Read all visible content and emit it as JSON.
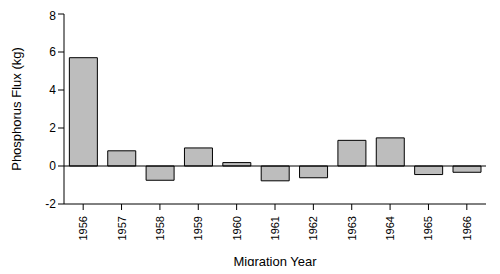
{
  "chart_data": {
    "type": "bar",
    "x_label": "Migration Year",
    "y_label": "Phosphorus Flux (kg)",
    "categories": [
      "1956",
      "1957",
      "1958",
      "1959",
      "1960",
      "1961",
      "1962",
      "1963",
      "1964",
      "1965",
      "1966"
    ],
    "values": [
      5.7,
      0.8,
      -0.75,
      0.95,
      0.18,
      -0.78,
      -0.62,
      1.35,
      1.48,
      -0.45,
      -0.33
    ],
    "color": "#bdbdbd",
    "ylim": [
      -2,
      8
    ],
    "yticks": [
      -2,
      0,
      2,
      4,
      6,
      8
    ],
    "grid": false
  }
}
